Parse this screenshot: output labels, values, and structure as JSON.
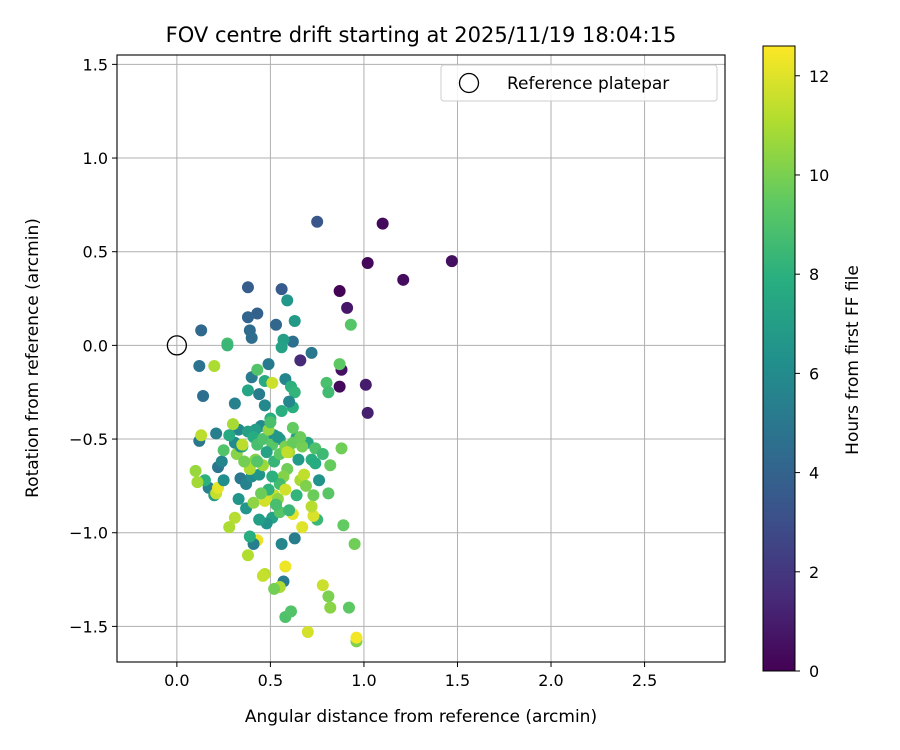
{
  "chart_data": {
    "type": "scatter",
    "title": "FOV centre drift starting at 2025/11/19 18:04:15",
    "xlabel": "Angular distance from reference (arcmin)",
    "ylabel": "Rotation from reference (arcmin)",
    "xlim": [
      -0.32,
      2.93
    ],
    "ylim": [
      -1.69,
      1.55
    ],
    "xticks": [
      0.0,
      0.5,
      1.0,
      1.5,
      2.0,
      2.5
    ],
    "xtick_labels": [
      "0.0",
      "0.5",
      "1.0",
      "1.5",
      "2.0",
      "2.5"
    ],
    "yticks": [
      -1.5,
      -1.0,
      -0.5,
      0.0,
      0.5,
      1.0,
      1.5
    ],
    "ytick_labels": [
      "−1.5",
      "−1.0",
      "−0.5",
      "0.0",
      "0.5",
      "1.0",
      "1.5"
    ],
    "grid": true,
    "legend": {
      "position": "top-right",
      "entries": [
        "Reference platepar"
      ]
    },
    "reference": {
      "name": "Reference platepar",
      "x": 0.0,
      "y": 0.0,
      "marker": "open-circle"
    },
    "colorbar": {
      "label": "Hours from first FF file",
      "colormap": "viridis",
      "range": [
        0,
        12.6
      ],
      "ticks": [
        0,
        2,
        4,
        6,
        8,
        10,
        12
      ],
      "tick_labels": [
        "0",
        "2",
        "4",
        "6",
        "8",
        "10",
        "12"
      ]
    },
    "points": [
      [
        0.87,
        0.29,
        0.1
      ],
      [
        1.02,
        0.44,
        0.2
      ],
      [
        1.1,
        0.65,
        0.3
      ],
      [
        1.21,
        0.35,
        0.4
      ],
      [
        1.47,
        0.45,
        0.5
      ],
      [
        0.91,
        0.2,
        0.8
      ],
      [
        0.88,
        -0.13,
        0.6
      ],
      [
        1.01,
        -0.21,
        1.0
      ],
      [
        1.02,
        -0.36,
        1.1
      ],
      [
        0.87,
        -0.22,
        0.3
      ],
      [
        0.66,
        -0.08,
        1.5
      ],
      [
        0.75,
        0.66,
        3.4
      ],
      [
        0.56,
        0.3,
        3.6
      ],
      [
        0.38,
        0.31,
        3.7
      ],
      [
        0.43,
        0.17,
        3.9
      ],
      [
        0.13,
        0.08,
        4.3
      ],
      [
        0.38,
        0.15,
        4.1
      ],
      [
        0.53,
        0.11,
        4.2
      ],
      [
        0.39,
        0.08,
        4.4
      ],
      [
        0.4,
        0.04,
        4.5
      ],
      [
        0.62,
        0.02,
        4.6
      ],
      [
        0.12,
        -0.11,
        4.8
      ],
      [
        0.72,
        -0.04,
        5.0
      ],
      [
        0.14,
        -0.27,
        4.6
      ],
      [
        0.49,
        -0.1,
        5.1
      ],
      [
        0.4,
        -0.17,
        5.2
      ],
      [
        0.44,
        -0.26,
        5.3
      ],
      [
        0.31,
        -0.31,
        5.5
      ],
      [
        0.58,
        -0.18,
        5.7
      ],
      [
        0.47,
        -0.32,
        5.9
      ],
      [
        0.12,
        -0.51,
        5.0
      ],
      [
        0.21,
        -0.47,
        5.4
      ],
      [
        0.33,
        -0.45,
        5.8
      ],
      [
        0.45,
        -0.43,
        6.0
      ],
      [
        0.52,
        -0.48,
        6.2
      ],
      [
        0.59,
        0.24,
        6.6
      ],
      [
        0.63,
        0.13,
        6.8
      ],
      [
        0.57,
        0.03,
        7.0
      ],
      [
        0.27,
        0.01,
        8.8
      ],
      [
        0.56,
        -0.01,
        7.2
      ],
      [
        0.38,
        -0.24,
        7.4
      ],
      [
        0.47,
        -0.19,
        7.6
      ],
      [
        0.5,
        -0.39,
        7.8
      ],
      [
        0.61,
        -0.22,
        8.0
      ],
      [
        0.63,
        -0.25,
        8.2
      ],
      [
        0.62,
        -0.33,
        7.9
      ],
      [
        0.42,
        -0.45,
        7.0
      ],
      [
        0.55,
        -0.5,
        7.1
      ],
      [
        0.64,
        -0.49,
        7.3
      ],
      [
        0.7,
        -0.52,
        7.5
      ],
      [
        0.76,
        -0.72,
        6.4
      ],
      [
        0.65,
        -0.61,
        6.8
      ],
      [
        0.72,
        -0.61,
        7.9
      ],
      [
        0.8,
        -0.2,
        8.9
      ],
      [
        0.81,
        -0.25,
        8.6
      ],
      [
        0.87,
        -0.1,
        9.4
      ],
      [
        0.93,
        0.11,
        9.2
      ],
      [
        0.74,
        -0.55,
        9.0
      ],
      [
        0.82,
        -0.64,
        9.6
      ],
      [
        0.88,
        -0.55,
        9.8
      ],
      [
        0.73,
        -0.8,
        9.7
      ],
      [
        0.81,
        -0.79,
        9.3
      ],
      [
        0.75,
        -0.93,
        8.4
      ],
      [
        0.89,
        -0.96,
        9.5
      ],
      [
        0.95,
        -1.06,
        9.8
      ],
      [
        0.81,
        -1.34,
        10.0
      ],
      [
        0.82,
        -1.4,
        10.3
      ],
      [
        0.92,
        -1.4,
        9.4
      ],
      [
        0.96,
        -1.58,
        10.1
      ],
      [
        0.96,
        -1.56,
        12.4
      ],
      [
        0.7,
        -1.53,
        11.8
      ],
      [
        0.78,
        -1.28,
        11.6
      ],
      [
        0.73,
        -0.91,
        11.9
      ],
      [
        0.72,
        -0.86,
        11.2
      ],
      [
        0.67,
        -0.97,
        12.0
      ],
      [
        0.58,
        -1.45,
        9.0
      ],
      [
        0.61,
        -1.42,
        9.1
      ],
      [
        0.57,
        -1.26,
        5.2
      ],
      [
        0.55,
        -1.29,
        11.0
      ],
      [
        0.52,
        -1.3,
        9.9
      ],
      [
        0.58,
        -1.18,
        12.3
      ],
      [
        0.47,
        -1.22,
        11.3
      ],
      [
        0.46,
        -1.23,
        11.5
      ],
      [
        0.38,
        -1.12,
        11.1
      ],
      [
        0.43,
        -1.04,
        12.2
      ],
      [
        0.41,
        -1.06,
        5.4
      ],
      [
        0.39,
        -1.02,
        7.8
      ],
      [
        0.56,
        -1.06,
        5.7
      ],
      [
        0.63,
        -1.03,
        5.3
      ],
      [
        0.62,
        -0.9,
        12.1
      ],
      [
        0.51,
        -0.92,
        7.2
      ],
      [
        0.48,
        -0.95,
        6.4
      ],
      [
        0.44,
        -0.93,
        7.0
      ],
      [
        0.37,
        -0.87,
        6.6
      ],
      [
        0.33,
        -0.82,
        6.5
      ],
      [
        0.31,
        -0.92,
        11.2
      ],
      [
        0.28,
        -0.97,
        11.0
      ],
      [
        0.41,
        -0.84,
        10.4
      ],
      [
        0.47,
        -0.83,
        11.8
      ],
      [
        0.52,
        -0.8,
        11.6
      ],
      [
        0.53,
        -0.84,
        12.0
      ],
      [
        0.55,
        -0.89,
        9.2
      ],
      [
        0.6,
        -0.88,
        8.4
      ],
      [
        0.66,
        -0.72,
        10.9
      ],
      [
        0.68,
        -0.69,
        11.4
      ],
      [
        0.17,
        -0.76,
        5.5
      ],
      [
        0.2,
        -0.8,
        6.9
      ],
      [
        0.15,
        -0.72,
        8.0
      ],
      [
        0.1,
        -0.67,
        10.6
      ],
      [
        0.11,
        -0.73,
        10.8
      ],
      [
        0.21,
        -0.79,
        11.5
      ],
      [
        0.22,
        -0.76,
        12.1
      ],
      [
        0.25,
        -0.72,
        6.2
      ],
      [
        0.22,
        -0.65,
        4.9
      ],
      [
        0.24,
        -0.62,
        5.7
      ],
      [
        0.25,
        -0.56,
        9.1
      ],
      [
        0.31,
        -0.52,
        6.0
      ],
      [
        0.32,
        -0.58,
        10.3
      ],
      [
        0.35,
        -0.54,
        8.6
      ],
      [
        0.38,
        -0.46,
        7.1
      ],
      [
        0.41,
        -0.49,
        7.7
      ],
      [
        0.43,
        -0.53,
        8.8
      ],
      [
        0.46,
        -0.5,
        9.0
      ],
      [
        0.49,
        -0.45,
        10.5
      ],
      [
        0.51,
        -0.53,
        9.3
      ],
      [
        0.34,
        -0.71,
        5.0
      ],
      [
        0.37,
        -0.74,
        5.6
      ],
      [
        0.4,
        -0.7,
        6.1
      ],
      [
        0.44,
        -0.69,
        6.5
      ],
      [
        0.46,
        -0.64,
        10.7
      ],
      [
        0.39,
        -0.66,
        11.0
      ],
      [
        0.42,
        -0.61,
        10.2
      ],
      [
        0.48,
        -0.57,
        7.3
      ],
      [
        0.52,
        -0.62,
        8.3
      ],
      [
        0.55,
        -0.58,
        9.4
      ],
      [
        0.58,
        -0.54,
        10.0
      ],
      [
        0.6,
        -0.57,
        10.8
      ],
      [
        0.62,
        -0.52,
        9.6
      ],
      [
        0.59,
        -0.66,
        9.8
      ],
      [
        0.57,
        -0.7,
        10.2
      ],
      [
        0.55,
        -0.74,
        8.7
      ],
      [
        0.49,
        -0.77,
        8.1
      ],
      [
        0.45,
        -0.79,
        9.7
      ],
      [
        0.3,
        -0.42,
        10.9
      ],
      [
        0.13,
        -0.48,
        11.3
      ],
      [
        0.2,
        -0.11,
        11.0
      ],
      [
        0.27,
        0.0,
        8.4
      ],
      [
        0.34,
        -0.54,
        6.3
      ],
      [
        0.28,
        -0.48,
        7.6
      ],
      [
        0.36,
        -0.62,
        9.9
      ],
      [
        0.64,
        -0.8,
        8.2
      ],
      [
        0.69,
        -0.75,
        10.1
      ],
      [
        0.74,
        -0.63,
        7.7
      ],
      [
        0.67,
        -0.54,
        9.9
      ],
      [
        0.78,
        -0.58,
        8.5
      ],
      [
        0.62,
        -0.44,
        9.5
      ],
      [
        0.54,
        -0.49,
        6.7
      ],
      [
        0.5,
        -0.41,
        8.9
      ],
      [
        0.56,
        -0.35,
        7.9
      ],
      [
        0.6,
        -0.3,
        5.8
      ],
      [
        0.43,
        -0.62,
        9.2
      ],
      [
        0.51,
        -0.7,
        8.0
      ],
      [
        0.54,
        -0.82,
        10.4
      ],
      [
        0.53,
        -0.85,
        8.8
      ],
      [
        0.58,
        -0.77,
        11.7
      ],
      [
        0.51,
        -0.2,
        11.6
      ],
      [
        0.43,
        -0.13,
        9.1
      ],
      [
        0.35,
        -0.53,
        11.3
      ],
      [
        0.59,
        -0.57,
        11.4
      ],
      [
        0.66,
        -0.49,
        9.7
      ]
    ]
  }
}
